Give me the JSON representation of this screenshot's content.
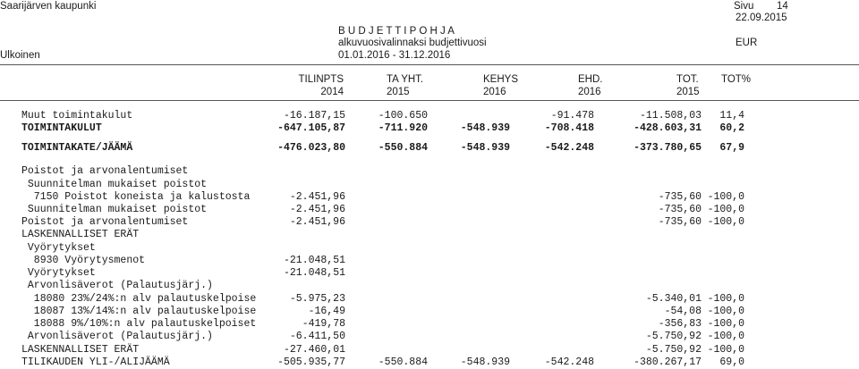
{
  "header": {
    "org": "Saarijärven kaupunki",
    "page_label": "Sivu",
    "page_no": "14",
    "date": "22.09.2015",
    "title": "B U D J E T T I P O H J A",
    "subtitle": "alkuvuosivalinnaksi budjettivuosi",
    "currency": "EUR",
    "scope": "Ulkoinen",
    "period": "01.01.2016 - 31.12.2016"
  },
  "columns": [
    {
      "l1": "TILINPTS",
      "l2": "2014"
    },
    {
      "l1": "TA YHT.",
      "l2": "2015"
    },
    {
      "l1": "KEHYS",
      "l2": "2016"
    },
    {
      "l1": "EHD.",
      "l2": "2016"
    },
    {
      "l1": "TOT.",
      "l2": "2015"
    },
    {
      "l1": "TOT%",
      "l2": ""
    }
  ],
  "rows": [
    {
      "label": "Muut toimintakulut",
      "v": [
        "-16.187,15",
        "-100.650",
        "",
        "-91.478",
        "-11.508,03",
        "11,4"
      ]
    },
    {
      "label": "TOIMINTAKULUT",
      "bold": true,
      "v": [
        "-647.105,87",
        "-711.920",
        "-548.939",
        "-708.418",
        "-428.603,31",
        "60,2"
      ]
    },
    {
      "label": "TOIMINTAKATE/JÄÄMÄ",
      "bold": true,
      "v": [
        "-476.023,80",
        "-550.884",
        "-548.939",
        "-542.248",
        "-373.780,65",
        "67,9"
      ]
    },
    {
      "label": "Poistot ja arvonalentumiset",
      "v": [
        "",
        "",
        "",
        "",
        "",
        ""
      ]
    },
    {
      "label": " Suunnitelman mukaiset poistot",
      "v": [
        "",
        "",
        "",
        "",
        "",
        ""
      ]
    },
    {
      "label": "  7150 Poistot koneista ja kalustosta",
      "v": [
        "-2.451,96",
        "",
        "",
        "",
        "-735,60",
        "-100,0"
      ]
    },
    {
      "label": " Suunnitelman mukaiset poistot",
      "v": [
        "-2.451,96",
        "",
        "",
        "",
        "-735,60",
        "-100,0"
      ]
    },
    {
      "label": "Poistot ja arvonalentumiset",
      "v": [
        "-2.451,96",
        "",
        "",
        "",
        "-735,60",
        "-100,0"
      ]
    },
    {
      "label": "LASKENNALLISET ERÄT",
      "v": [
        "",
        "",
        "",
        "",
        "",
        ""
      ]
    },
    {
      "label": " Vyörytykset",
      "v": [
        "",
        "",
        "",
        "",
        "",
        ""
      ]
    },
    {
      "label": "  8930 Vyörytysmenot",
      "v": [
        "-21.048,51",
        "",
        "",
        "",
        "",
        ""
      ]
    },
    {
      "label": " Vyörytykset",
      "v": [
        "-21.048,51",
        "",
        "",
        "",
        "",
        ""
      ]
    },
    {
      "label": " Arvonlisäverot (Palautusjärj.)",
      "v": [
        "",
        "",
        "",
        "",
        "",
        ""
      ]
    },
    {
      "label": "  18080 23%/24%:n alv palautuskelpoise",
      "v": [
        "-5.975,23",
        "",
        "",
        "",
        "-5.340,01",
        "-100,0"
      ]
    },
    {
      "label": "  18087 13%/14%:n alv palautuskelpoise",
      "v": [
        "-16,49",
        "",
        "",
        "",
        "-54,08",
        "-100,0"
      ]
    },
    {
      "label": "  18088 9%/10%:n alv palautuskelpoiset",
      "v": [
        "-419,78",
        "",
        "",
        "",
        "-356,83",
        "-100,0"
      ]
    },
    {
      "label": " Arvonlisäverot (Palautusjärj.)",
      "v": [
        "-6.411,50",
        "",
        "",
        "",
        "-5.750,92",
        "-100,0"
      ]
    },
    {
      "label": "LASKENNALLISET ERÄT",
      "v": [
        "-27.460,01",
        "",
        "",
        "",
        "-5.750,92",
        "-100,0"
      ]
    },
    {
      "label": "TILIKAUDEN YLI-/ALIJÄÄMÄ",
      "v": [
        "-505.935,77",
        "-550.884",
        "-548.939",
        "-542.248",
        "-380.267,17",
        "69,0"
      ]
    }
  ]
}
